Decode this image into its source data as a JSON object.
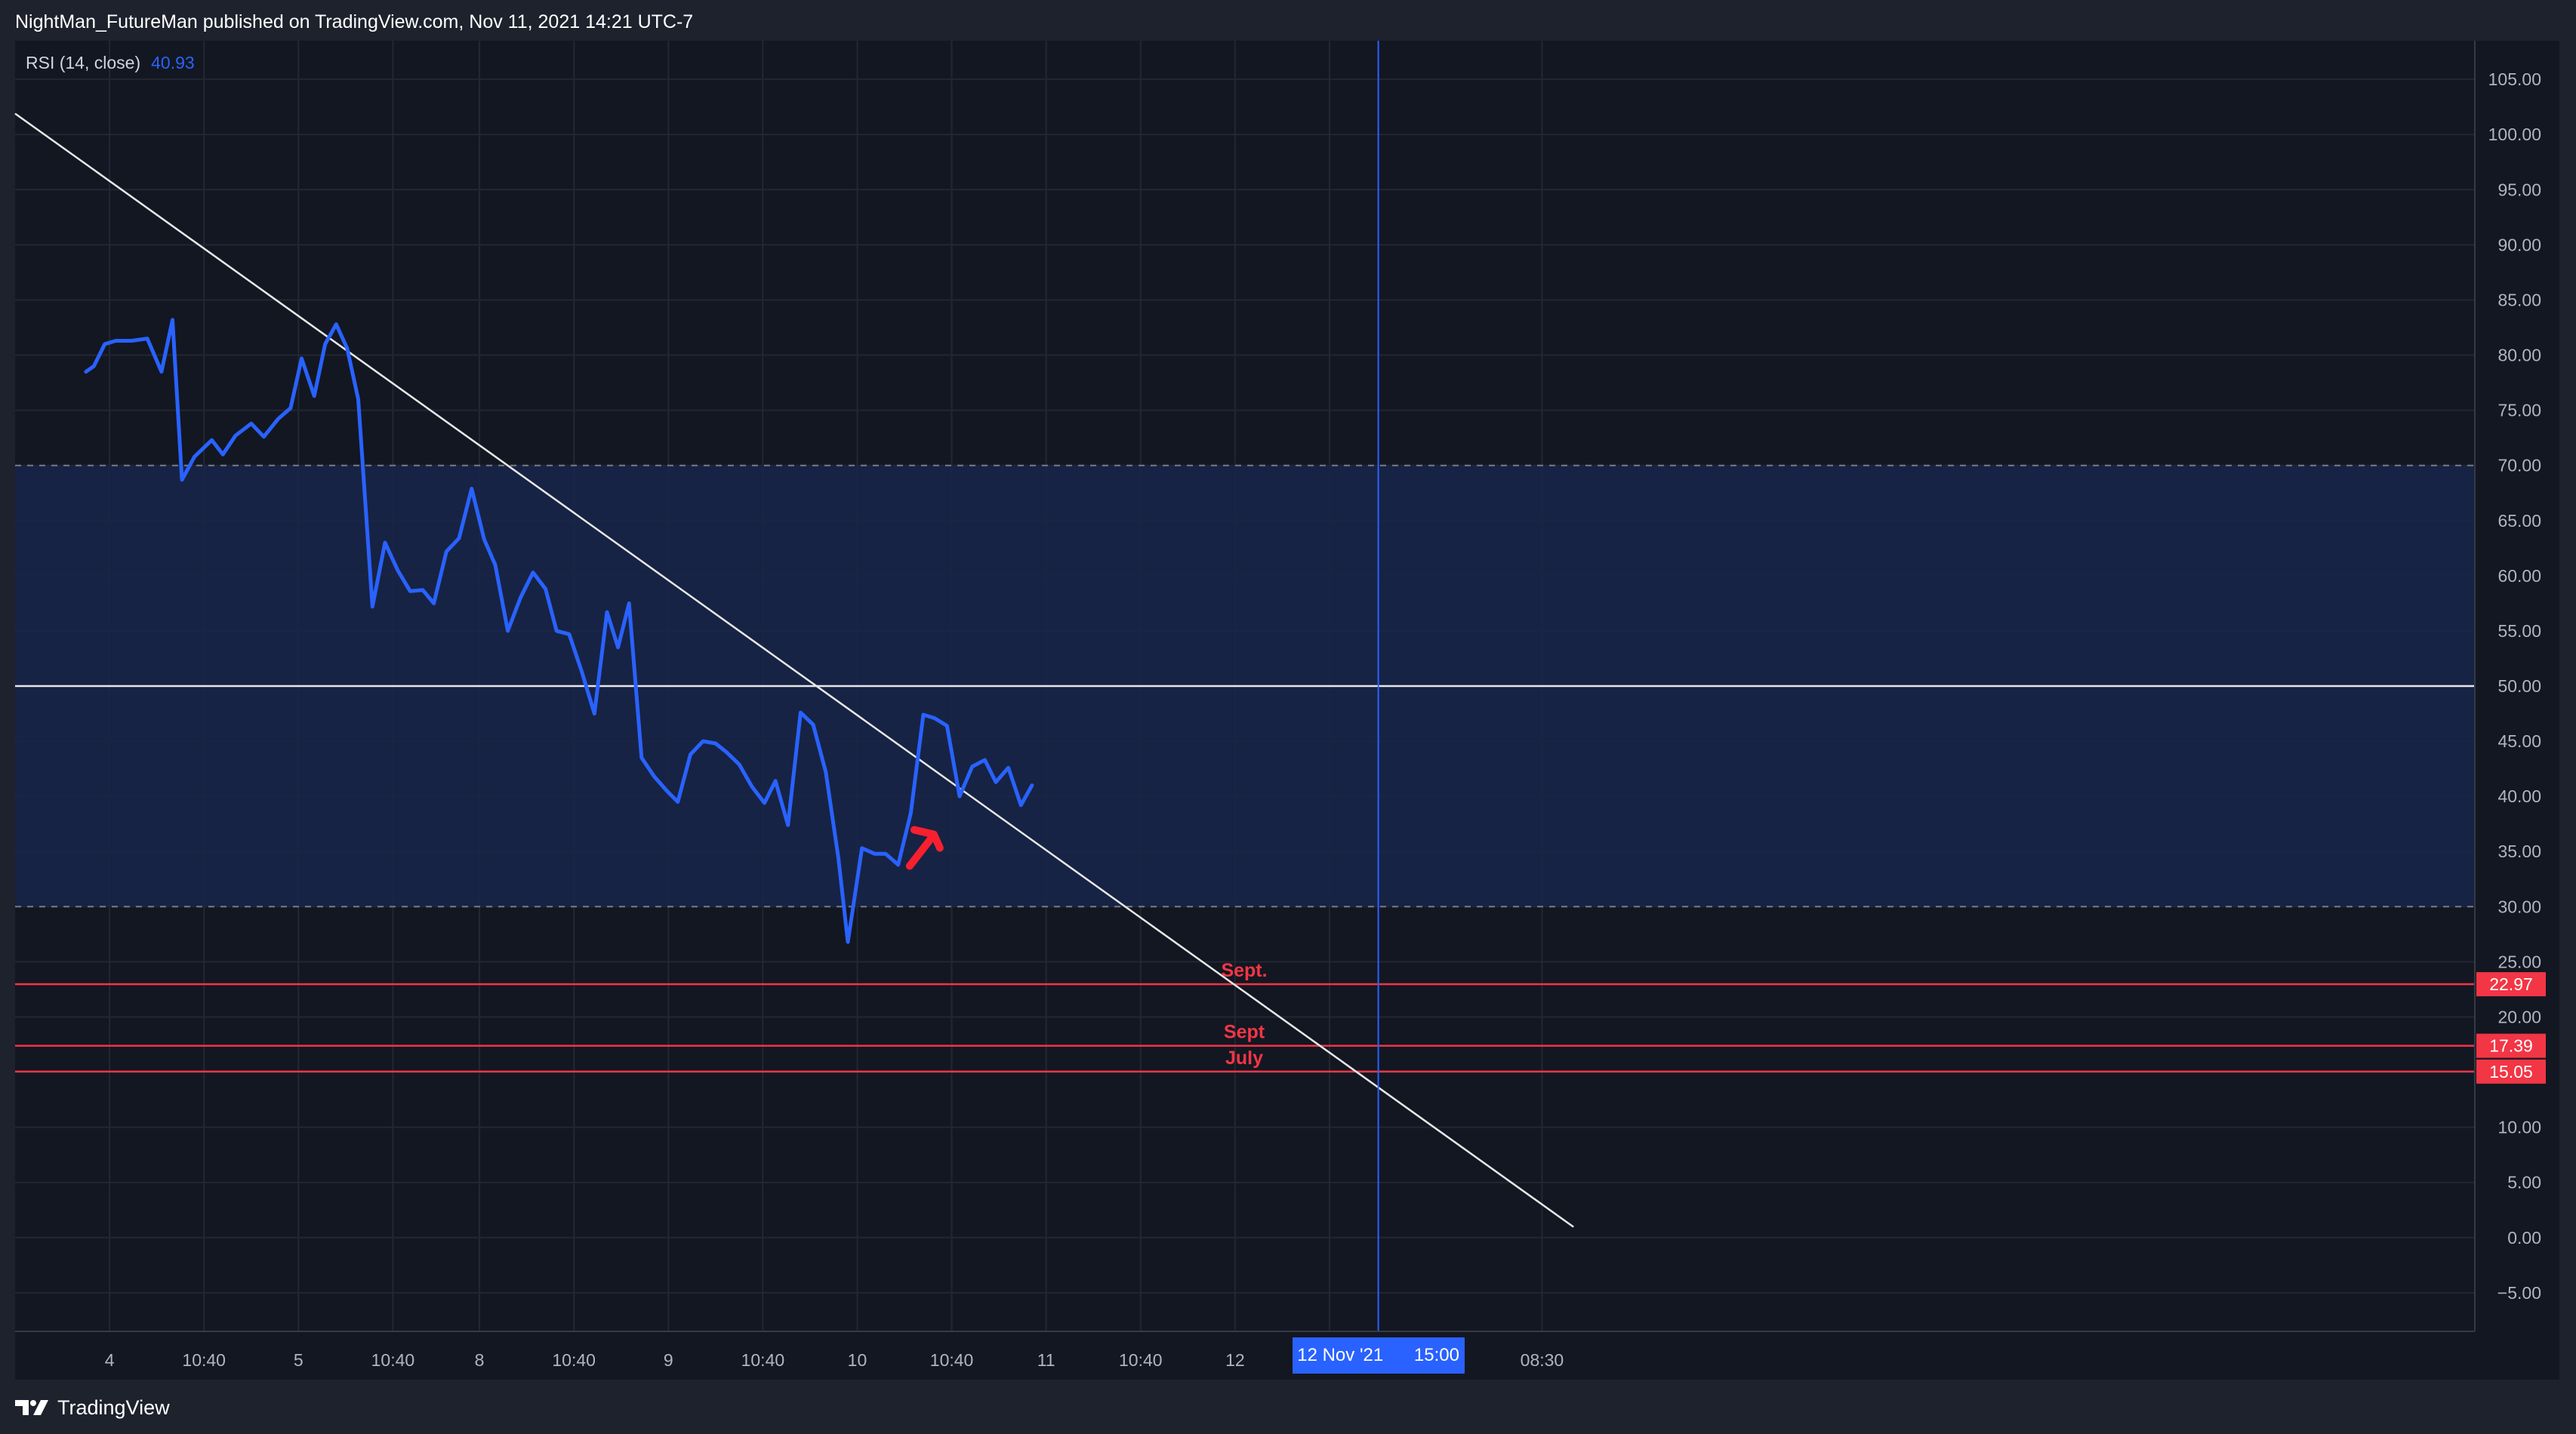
{
  "header": {
    "published_text": "NightMan_FutureMan published on TradingView.com, Nov 11, 2021 14:21 UTC-7"
  },
  "footer": {
    "brand_text": "TradingView",
    "brand_icon": "tradingview-logo-icon"
  },
  "legend": {
    "indicator_label": "RSI (14, close)",
    "indicator_value": "40.93"
  },
  "colors": {
    "background": "#131722",
    "frame": "#1e222d",
    "rsi_line": "#2962ff",
    "band_fill": "#19264a",
    "trendline": "#e8e8e8",
    "level_lines": "#f23645",
    "crosshair": "#2962ff",
    "axis_text": "#b2b5be"
  },
  "chart_data": {
    "type": "line",
    "title": "",
    "xlabel": "",
    "ylabel": "",
    "ylim": [
      -8.5,
      108.5
    ],
    "grid": true,
    "y_ticks": [
      {
        "value": 105,
        "label": "105.00"
      },
      {
        "value": 100,
        "label": "100.00"
      },
      {
        "value": 95,
        "label": "95.00"
      },
      {
        "value": 90,
        "label": "90.00"
      },
      {
        "value": 85,
        "label": "85.00"
      },
      {
        "value": 80,
        "label": "80.00"
      },
      {
        "value": 75,
        "label": "75.00"
      },
      {
        "value": 70,
        "label": "70.00"
      },
      {
        "value": 65,
        "label": "65.00"
      },
      {
        "value": 60,
        "label": "60.00"
      },
      {
        "value": 55,
        "label": "55.00"
      },
      {
        "value": 50,
        "label": "50.00"
      },
      {
        "value": 45,
        "label": "45.00"
      },
      {
        "value": 40,
        "label": "40.00"
      },
      {
        "value": 35,
        "label": "35.00"
      },
      {
        "value": 30,
        "label": "30.00"
      },
      {
        "value": 25,
        "label": "25.00"
      },
      {
        "value": 20,
        "label": "20.00"
      },
      {
        "value": 15,
        "label": "15.00"
      },
      {
        "value": 10,
        "label": "10.00"
      },
      {
        "value": 5,
        "label": "5.00"
      },
      {
        "value": 0,
        "label": "0.00"
      },
      {
        "value": -5,
        "label": "−5.00"
      }
    ],
    "x_ticks": [
      {
        "t": 6,
        "label": "4"
      },
      {
        "t": 12,
        "label": "10:40"
      },
      {
        "t": 18,
        "label": "5"
      },
      {
        "t": 24,
        "label": "10:40"
      },
      {
        "t": 29.5,
        "label": "8"
      },
      {
        "t": 35.5,
        "label": "10:40"
      },
      {
        "t": 41.5,
        "label": "9"
      },
      {
        "t": 47.5,
        "label": "10:40"
      },
      {
        "t": 53.5,
        "label": "10"
      },
      {
        "t": 59.5,
        "label": "10:40"
      },
      {
        "t": 65.5,
        "label": "11"
      },
      {
        "t": 71.5,
        "label": "10:40"
      },
      {
        "t": 77.5,
        "label": "12"
      },
      {
        "t": 83.5,
        "label": "08:30"
      },
      {
        "t": 97,
        "label": "08:30"
      }
    ],
    "series": [
      {
        "values": [
          [
            4.5,
            78.5
          ],
          [
            5,
            79
          ],
          [
            5.7,
            81
          ],
          [
            6.4,
            81.3
          ],
          [
            7.4,
            81.3
          ],
          [
            8.4,
            81.5
          ],
          [
            9.3,
            78.5
          ],
          [
            10,
            83.2
          ],
          [
            10.6,
            68.7
          ],
          [
            11.4,
            70.8
          ],
          [
            12.5,
            72.3
          ],
          [
            13.2,
            71
          ],
          [
            14,
            72.7
          ],
          [
            15,
            73.8
          ],
          [
            15.8,
            72.6
          ],
          [
            16.7,
            74.2
          ],
          [
            17.5,
            75.2
          ],
          [
            18.2,
            79.7
          ],
          [
            19,
            76.3
          ],
          [
            19.7,
            81
          ],
          [
            20.4,
            82.8
          ],
          [
            21.1,
            80.6
          ],
          [
            21.8,
            76
          ],
          [
            22.7,
            57.2
          ],
          [
            23.5,
            63
          ],
          [
            24.3,
            60.5
          ],
          [
            25.1,
            58.6
          ],
          [
            25.9,
            58.7
          ],
          [
            26.6,
            57.5
          ],
          [
            27.4,
            62.2
          ],
          [
            28.2,
            63.4
          ],
          [
            29,
            67.9
          ],
          [
            29.8,
            63.3
          ],
          [
            30.5,
            61
          ],
          [
            31.3,
            55
          ],
          [
            32.1,
            58
          ],
          [
            32.9,
            60.3
          ],
          [
            33.7,
            58.8
          ],
          [
            34.4,
            55
          ],
          [
            35.2,
            54.7
          ],
          [
            36,
            51.3
          ],
          [
            36.8,
            47.5
          ],
          [
            37.6,
            56.7
          ],
          [
            38.3,
            53.5
          ],
          [
            39,
            57.5
          ],
          [
            39.8,
            43.5
          ],
          [
            40.6,
            41.8
          ],
          [
            41.4,
            40.5
          ],
          [
            42.1,
            39.5
          ],
          [
            42.9,
            43.8
          ],
          [
            43.7,
            45
          ],
          [
            44.5,
            44.8
          ],
          [
            45.2,
            44
          ],
          [
            46,
            42.9
          ],
          [
            46.8,
            40.9
          ],
          [
            47.6,
            39.4
          ],
          [
            48.3,
            41.4
          ],
          [
            49.1,
            37.4
          ],
          [
            49.9,
            47.6
          ],
          [
            50.7,
            46.5
          ],
          [
            51.5,
            42.2
          ],
          [
            52.3,
            34.4
          ],
          [
            52.9,
            26.8
          ],
          [
            53.8,
            35.3
          ],
          [
            54.6,
            34.8
          ],
          [
            55.3,
            34.8
          ],
          [
            56.1,
            33.8
          ],
          [
            56.9,
            38.5
          ],
          [
            57.7,
            47.4
          ],
          [
            58.4,
            47.1
          ],
          [
            59.2,
            46.4
          ],
          [
            60,
            40
          ],
          [
            60.8,
            42.7
          ],
          [
            61.6,
            43.3
          ],
          [
            62.3,
            41.3
          ],
          [
            63.1,
            42.6
          ],
          [
            63.9,
            39.2
          ],
          [
            64.6,
            41
          ]
        ]
      }
    ],
    "overbought": 70,
    "oversold": 30,
    "middle_line": 50,
    "trendline": {
      "start": [
        0,
        101.9
      ],
      "end": [
        99,
        0.97
      ]
    },
    "horizontal_levels": [
      {
        "value": 22.97,
        "label": "Sept.",
        "price_label": "22.97"
      },
      {
        "value": 17.39,
        "label": "Sept",
        "price_label": "17.39"
      },
      {
        "value": 15.05,
        "label": "July",
        "price_label": "15.05"
      }
    ],
    "crosshair": {
      "t": 86.6,
      "date_label": "12 Nov '21",
      "time_label": "15:00"
    },
    "arrow_annotation": {
      "t": 57.5,
      "value": 35.6,
      "direction": "up-right"
    }
  }
}
